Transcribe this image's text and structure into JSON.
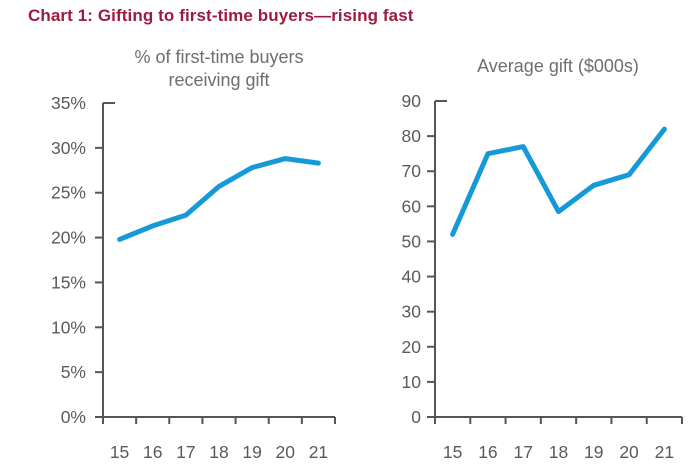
{
  "page": {
    "title": "Chart 1: Gifting to first-time buyers—rising fast",
    "title_color": "#9d1c3d"
  },
  "style": {
    "axis_color": "#55565a",
    "tick_label_color": "#595a5c",
    "chart_title_color": "#6d6e71"
  },
  "chart_data": [
    {
      "type": "line",
      "title": "% of first-time buyers receiving gift",
      "title_lines": [
        "% of first-time buyers",
        "receiving gift"
      ],
      "categories": [
        "15",
        "16",
        "17",
        "18",
        "19",
        "20",
        "21"
      ],
      "values": [
        19.8,
        21.3,
        22.5,
        25.7,
        27.8,
        28.8,
        28.3
      ],
      "ylim": [
        0,
        35
      ],
      "ytick_step": 5,
      "ytick_labels": [
        "0%",
        "5%",
        "10%",
        "15%",
        "20%",
        "25%",
        "30%",
        "35%"
      ],
      "line_color": "#1699d8",
      "legend": "none",
      "grid": "off"
    },
    {
      "type": "line",
      "title": "Average gift ($000s)",
      "title_lines": [
        "Average gift ($000s)"
      ],
      "categories": [
        "15",
        "16",
        "17",
        "18",
        "19",
        "20",
        "21"
      ],
      "values": [
        52,
        75,
        77,
        58.5,
        66,
        69,
        82
      ],
      "ylim": [
        0,
        90
      ],
      "ytick_step": 10,
      "ytick_labels": [
        "0",
        "10",
        "20",
        "30",
        "40",
        "50",
        "60",
        "70",
        "80",
        "90"
      ],
      "line_color": "#1699d8",
      "legend": "none",
      "grid": "off"
    }
  ]
}
